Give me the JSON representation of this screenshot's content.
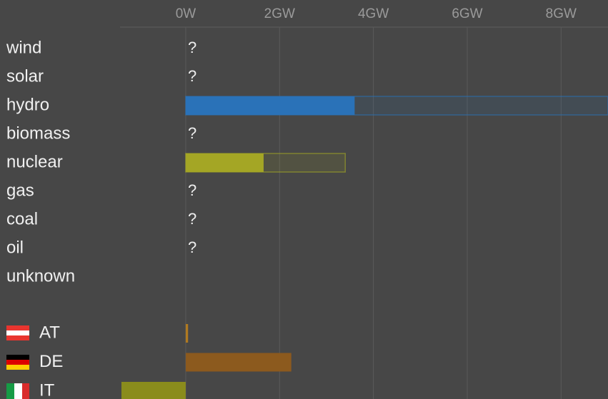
{
  "chart_data": [
    {
      "type": "bar",
      "orientation": "horizontal",
      "categories": [
        "wind",
        "solar",
        "hydro",
        "biomass",
        "nuclear",
        "gas",
        "coal",
        "oil",
        "unknown"
      ],
      "values": [
        null,
        null,
        3.6,
        null,
        1.66,
        null,
        null,
        null,
        null
      ],
      "value_labels": [
        "?",
        "?",
        null,
        "?",
        null,
        "?",
        "?",
        "?",
        null
      ],
      "capacity": [
        null,
        null,
        9,
        null,
        3.4,
        null,
        null,
        null,
        null
      ],
      "colors": [
        null,
        null,
        "#2a72b8",
        null,
        "#a4a625",
        null,
        null,
        null,
        null
      ],
      "xlim": [
        -1.4,
        9
      ],
      "xticks": [
        {
          "value": 0,
          "label": "0W"
        },
        {
          "value": 2,
          "label": "2GW"
        },
        {
          "value": 4,
          "label": "4GW"
        },
        {
          "value": 6,
          "label": "6GW"
        },
        {
          "value": 8,
          "label": "8GW"
        }
      ],
      "grid": true
    },
    {
      "type": "bar",
      "orientation": "horizontal",
      "categories": [
        "AT",
        "DE",
        "IT"
      ],
      "values": [
        0.05,
        2.25,
        -1.37
      ],
      "colors": [
        "#b07a20",
        "#8c5a1e",
        "#8a8c1c"
      ],
      "xlim": [
        -1.4,
        9
      ]
    }
  ]
}
